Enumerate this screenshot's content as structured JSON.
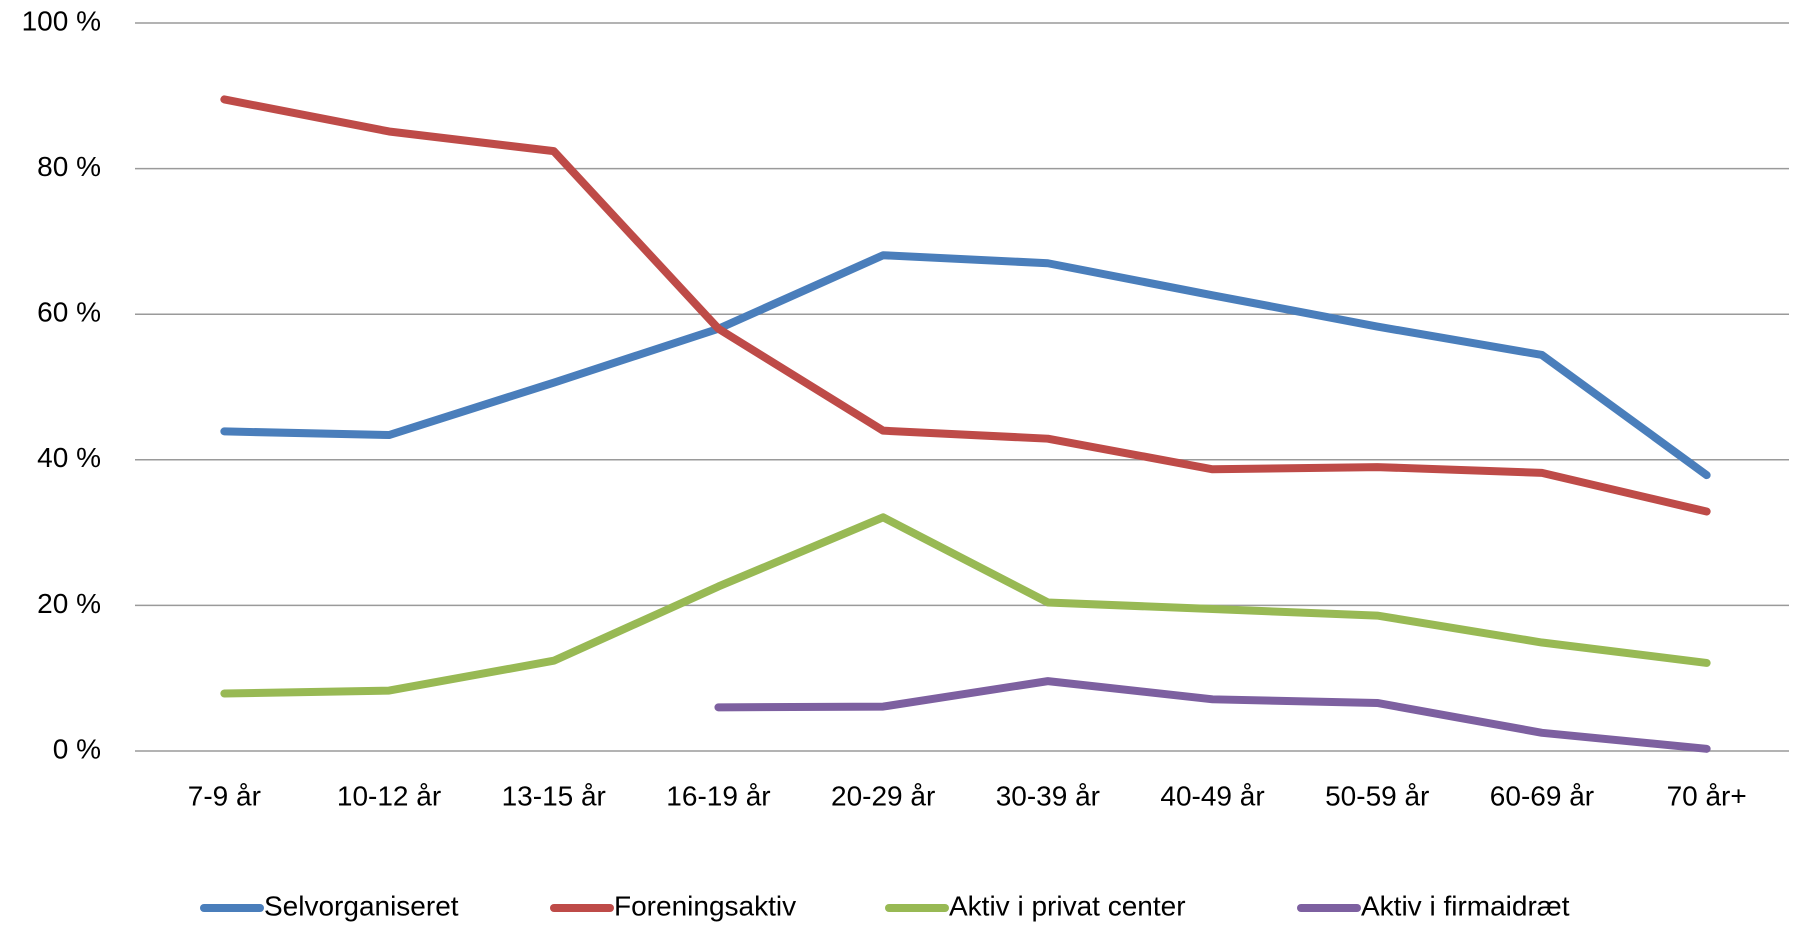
{
  "chart_data": {
    "type": "line",
    "categories": [
      "7-9 år",
      "10-12 år",
      "13-15 år",
      "16-19 år",
      "20-29 år",
      "30-39 år",
      "40-49 år",
      "50-59 år",
      "60-69 år",
      "70 år+"
    ],
    "series": [
      {
        "name": "Selvorganiseret",
        "color": "#4a7ebb",
        "values": [
          43.9,
          43.4,
          50.6,
          58,
          68.1,
          67,
          62.6,
          58.3,
          54.4,
          37.9
        ]
      },
      {
        "name": "Foreningsaktiv",
        "color": "#be4b48",
        "values": [
          89.5,
          85.1,
          82.4,
          58,
          44,
          42.9,
          38.7,
          39,
          38.2,
          32.9
        ]
      },
      {
        "name": "Aktiv i privat center",
        "color": "#98b954",
        "values": [
          7.9,
          8.3,
          12.4,
          22.6,
          32.1,
          20.4,
          19.5,
          18.6,
          14.9,
          12.1
        ]
      },
      {
        "name": "Aktiv i firmaidræt",
        "color": "#7d60a0",
        "values": [
          null,
          null,
          null,
          6.0,
          6.1,
          9.6,
          7.1,
          6.6,
          2.5,
          0.3
        ]
      }
    ],
    "ylim": [
      0,
      100
    ],
    "yticks": [
      {
        "value": 0,
        "label": "0 %"
      },
      {
        "value": 20,
        "label": "20 %"
      },
      {
        "value": 40,
        "label": "40 %"
      },
      {
        "value": 60,
        "label": "60 %"
      },
      {
        "value": 80,
        "label": "80 %"
      },
      {
        "value": 100,
        "label": "100 %"
      }
    ],
    "grid": true,
    "legend": "bottom"
  }
}
